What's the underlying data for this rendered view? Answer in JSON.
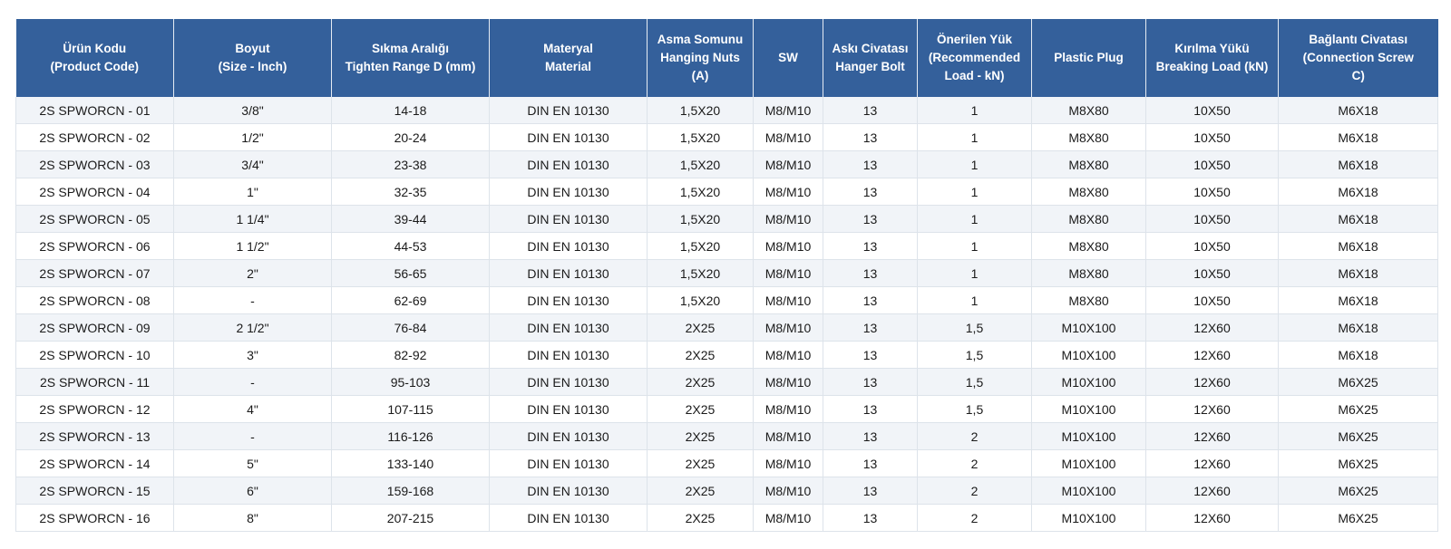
{
  "colors": {
    "header_bg": "#34609b",
    "header_text": "#ffffff",
    "row_alt_bg": "#f1f4f8",
    "grid_line": "#dde3ea"
  },
  "table": {
    "headers": [
      "Ürün Kodu\n(Product Code)",
      "Boyut\n(Size - Inch)",
      "Sıkma Aralığı\nTighten Range D (mm)",
      "Materyal\nMaterial",
      "Asma Somunu\nHanging Nuts\n(A)",
      "SW",
      "Askı Civatası\nHanger Bolt",
      "Önerilen Yük\n(Recommended\nLoad - kN)",
      "Plastic Plug",
      "Kırılma Yükü\nBreaking Load (kN)",
      "Bağlantı Civatası\n(Connection Screw\nC)"
    ],
    "rows": [
      [
        "2S SPWORCN - 01",
        "3/8\"",
        "14-18",
        "DIN EN 10130",
        "1,5X20",
        "M8/M10",
        "13",
        "1",
        "M8X80",
        "10X50",
        "M6X18"
      ],
      [
        "2S SPWORCN - 02",
        "1/2\"",
        "20-24",
        "DIN EN 10130",
        "1,5X20",
        "M8/M10",
        "13",
        "1",
        "M8X80",
        "10X50",
        "M6X18"
      ],
      [
        "2S SPWORCN - 03",
        "3/4\"",
        "23-38",
        "DIN EN 10130",
        "1,5X20",
        "M8/M10",
        "13",
        "1",
        "M8X80",
        "10X50",
        "M6X18"
      ],
      [
        "2S SPWORCN - 04",
        "1\"",
        "32-35",
        "DIN EN 10130",
        "1,5X20",
        "M8/M10",
        "13",
        "1",
        "M8X80",
        "10X50",
        "M6X18"
      ],
      [
        "2S SPWORCN - 05",
        "1 1/4\"",
        "39-44",
        "DIN EN 10130",
        "1,5X20",
        "M8/M10",
        "13",
        "1",
        "M8X80",
        "10X50",
        "M6X18"
      ],
      [
        "2S SPWORCN - 06",
        "1 1/2\"",
        "44-53",
        "DIN EN 10130",
        "1,5X20",
        "M8/M10",
        "13",
        "1",
        "M8X80",
        "10X50",
        "M6X18"
      ],
      [
        "2S SPWORCN - 07",
        "2\"",
        "56-65",
        "DIN EN 10130",
        "1,5X20",
        "M8/M10",
        "13",
        "1",
        "M8X80",
        "10X50",
        "M6X18"
      ],
      [
        "2S SPWORCN - 08",
        "-",
        "62-69",
        "DIN EN 10130",
        "1,5X20",
        "M8/M10",
        "13",
        "1",
        "M8X80",
        "10X50",
        "M6X18"
      ],
      [
        "2S SPWORCN - 09",
        "2 1/2\"",
        "76-84",
        "DIN EN 10130",
        "2X25",
        "M8/M10",
        "13",
        "1,5",
        "M10X100",
        "12X60",
        "M6X18"
      ],
      [
        "2S SPWORCN - 10",
        "3\"",
        "82-92",
        "DIN EN 10130",
        "2X25",
        "M8/M10",
        "13",
        "1,5",
        "M10X100",
        "12X60",
        "M6X18"
      ],
      [
        "2S SPWORCN - 11",
        "-",
        "95-103",
        "DIN EN 10130",
        "2X25",
        "M8/M10",
        "13",
        "1,5",
        "M10X100",
        "12X60",
        "M6X25"
      ],
      [
        "2S SPWORCN - 12",
        "4\"",
        "107-115",
        "DIN EN 10130",
        "2X25",
        "M8/M10",
        "13",
        "1,5",
        "M10X100",
        "12X60",
        "M6X25"
      ],
      [
        "2S SPWORCN - 13",
        "-",
        "116-126",
        "DIN EN 10130",
        "2X25",
        "M8/M10",
        "13",
        "2",
        "M10X100",
        "12X60",
        "M6X25"
      ],
      [
        "2S SPWORCN - 14",
        "5\"",
        "133-140",
        "DIN EN 10130",
        "2X25",
        "M8/M10",
        "13",
        "2",
        "M10X100",
        "12X60",
        "M6X25"
      ],
      [
        "2S SPWORCN - 15",
        "6\"",
        "159-168",
        "DIN EN 10130",
        "2X25",
        "M8/M10",
        "13",
        "2",
        "M10X100",
        "12X60",
        "M6X25"
      ],
      [
        "2S SPWORCN - 16",
        "8\"",
        "207-215",
        "DIN EN 10130",
        "2X25",
        "M8/M10",
        "13",
        "2",
        "M10X100",
        "12X60",
        "M6X25"
      ]
    ]
  }
}
